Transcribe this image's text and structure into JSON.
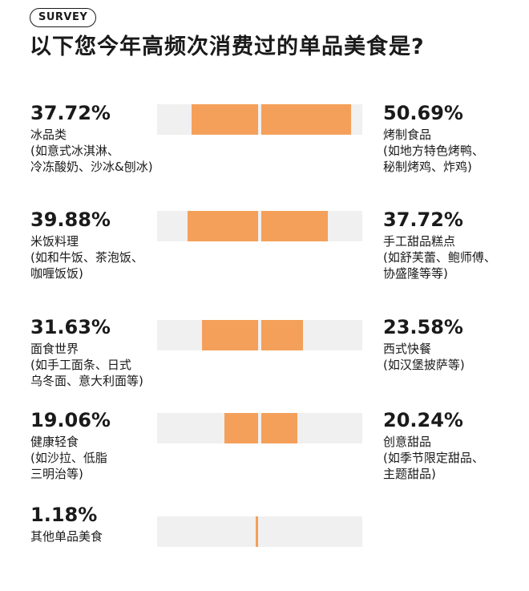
{
  "badge": "SURVEY",
  "title": "以下您今年高频次消费过的单品美食是?",
  "colors": {
    "bar": "#f4a05a",
    "track": "#f0f0f0"
  },
  "chart_data": {
    "type": "bar",
    "pairs": [
      {
        "left": {
          "pct": "37.72%",
          "value": 37.72,
          "name": "冰品类",
          "note": "(如意式冰淇淋、\n冷冻酸奶、沙冰&刨冰)"
        },
        "right": {
          "pct": "50.69%",
          "value": 50.69,
          "name": "烤制食品",
          "note": "(如地方特色烤鸭、\n秘制烤鸡、炸鸡)"
        }
      },
      {
        "left": {
          "pct": "39.88%",
          "value": 39.88,
          "name": "米饭料理",
          "note": "(如和牛饭、茶泡饭、\n咖喱饭饭)"
        },
        "right": {
          "pct": "37.72%",
          "value": 37.72,
          "name": "手工甜品糕点",
          "note": "(如舒芙蕾、鲍师傅、\n协盛隆等等)"
        }
      },
      {
        "left": {
          "pct": "31.63%",
          "value": 31.63,
          "name": "面食世界",
          "note": "(如手工面条、日式\n乌冬面、意大利面等)"
        },
        "right": {
          "pct": "23.58%",
          "value": 23.58,
          "name": "西式快餐",
          "note": "(如汉堡披萨等)"
        }
      },
      {
        "left": {
          "pct": "19.06%",
          "value": 19.06,
          "name": "健康轻食",
          "note": "(如沙拉、低脂\n三明治等)"
        },
        "right": {
          "pct": "20.24%",
          "value": 20.24,
          "name": "创意甜品",
          "note": "(如季节限定甜品、\n主题甜品)"
        }
      },
      {
        "left": {
          "pct": "1.18%",
          "value": 1.18,
          "name": "其他单品美食",
          "note": ""
        },
        "right": null
      }
    ]
  }
}
